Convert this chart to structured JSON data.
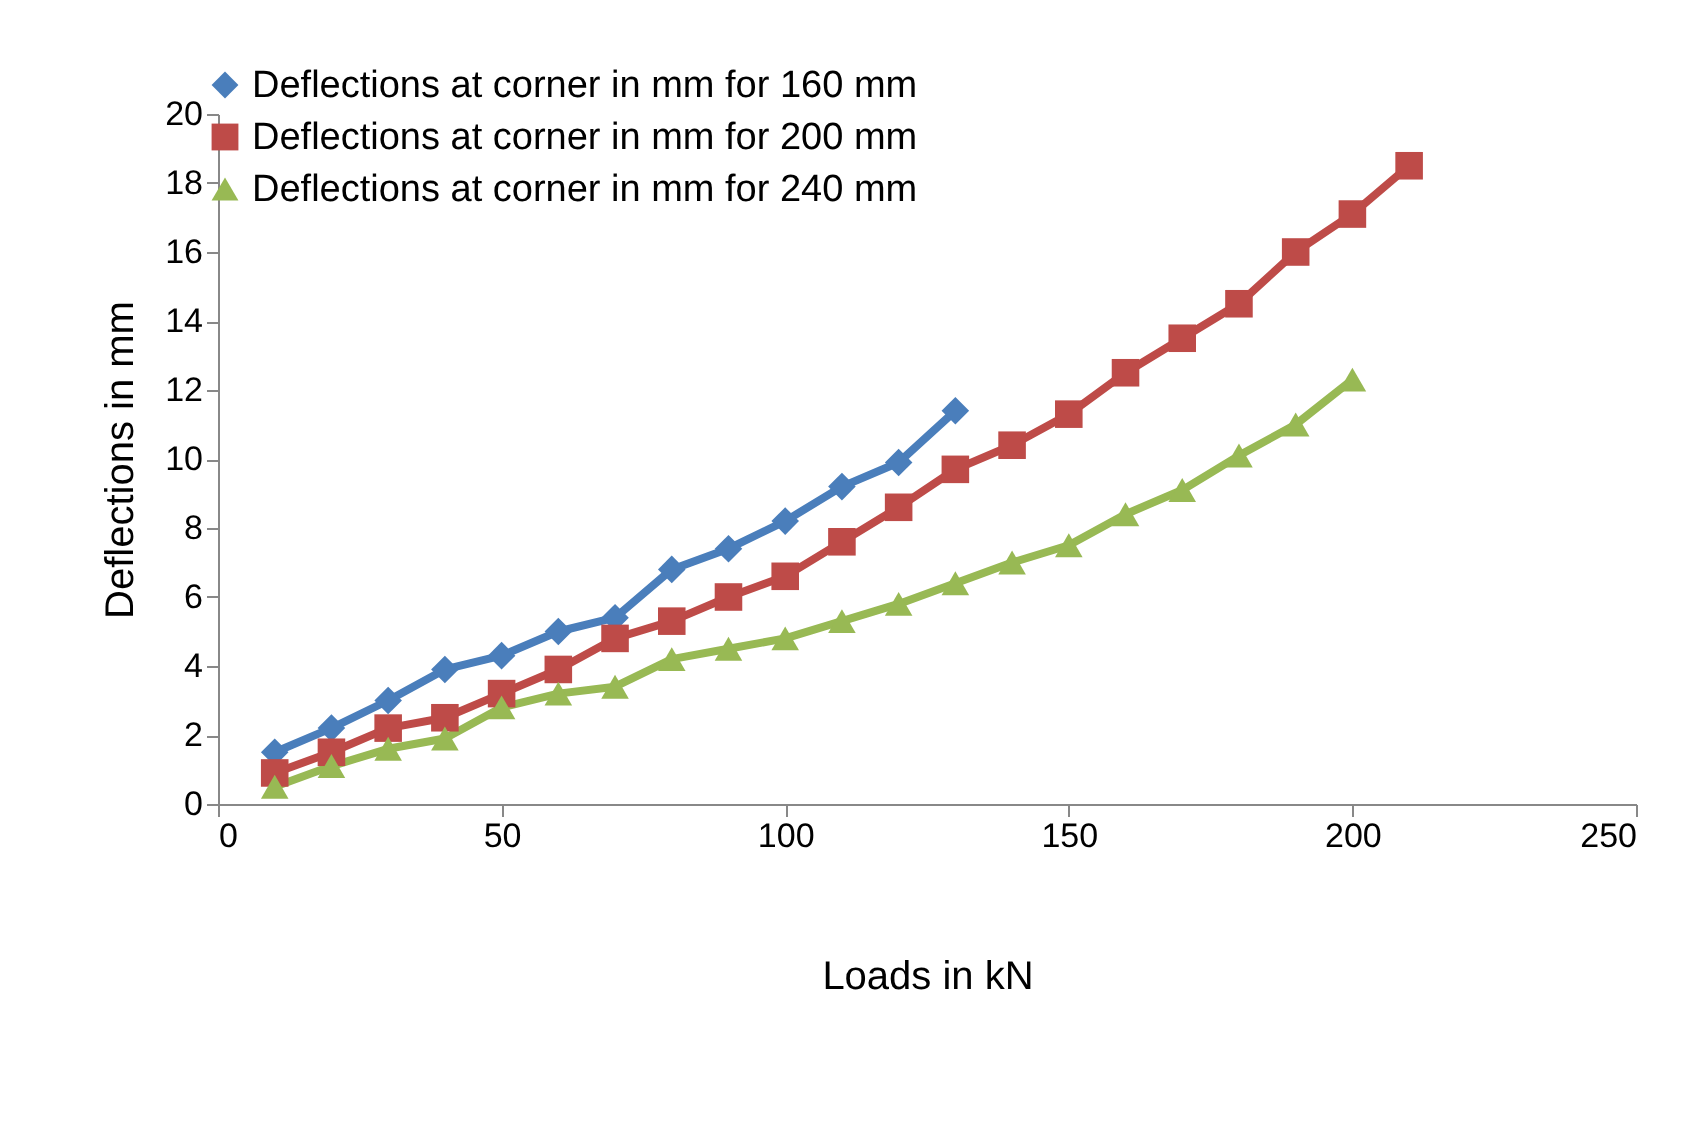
{
  "chart_data": {
    "type": "line",
    "xlabel": "Loads in kN",
    "ylabel": "Deflections  in mm",
    "x": [
      10,
      20,
      30,
      40,
      50,
      60,
      70,
      80,
      90,
      100,
      110,
      120,
      130,
      140,
      150,
      160,
      170,
      180,
      190,
      200,
      210
    ],
    "series": [
      {
        "name": "Deflections at corner in mm for 160 mm",
        "color": "#4a7ebb",
        "marker": "diamond",
        "values": [
          1.5,
          2.2,
          3.0,
          3.9,
          4.3,
          5.0,
          5.4,
          6.8,
          7.4,
          8.2,
          9.2,
          9.9,
          11.4,
          null,
          null,
          null,
          null,
          null,
          null,
          null,
          null
        ]
      },
      {
        "name": "Deflections at corner in mm for 200 mm",
        "color": "#be4b48",
        "marker": "square",
        "values": [
          0.9,
          1.5,
          2.2,
          2.5,
          3.2,
          3.9,
          4.8,
          5.3,
          6.0,
          6.6,
          7.6,
          8.6,
          9.7,
          10.4,
          11.3,
          12.5,
          13.5,
          14.5,
          16.0,
          17.1,
          18.5
        ]
      },
      {
        "name": "Deflections at corner in mm for 240 mm",
        "color": "#98b954",
        "marker": "triangle",
        "values": [
          0.5,
          1.1,
          1.6,
          1.9,
          2.8,
          3.2,
          3.4,
          4.2,
          4.5,
          4.8,
          5.3,
          5.8,
          6.4,
          7.0,
          7.5,
          8.4,
          9.1,
          10.1,
          11.0,
          12.3,
          null
        ]
      }
    ],
    "xlim": [
      0,
      250
    ],
    "xticks": [
      0,
      50,
      100,
      150,
      200,
      250
    ],
    "ylim": [
      0,
      20
    ],
    "yticks": [
      0,
      2,
      4,
      6,
      8,
      10,
      12,
      14,
      16,
      18,
      20
    ],
    "grid": false,
    "legend": "top left",
    "line_style": "solid"
  }
}
